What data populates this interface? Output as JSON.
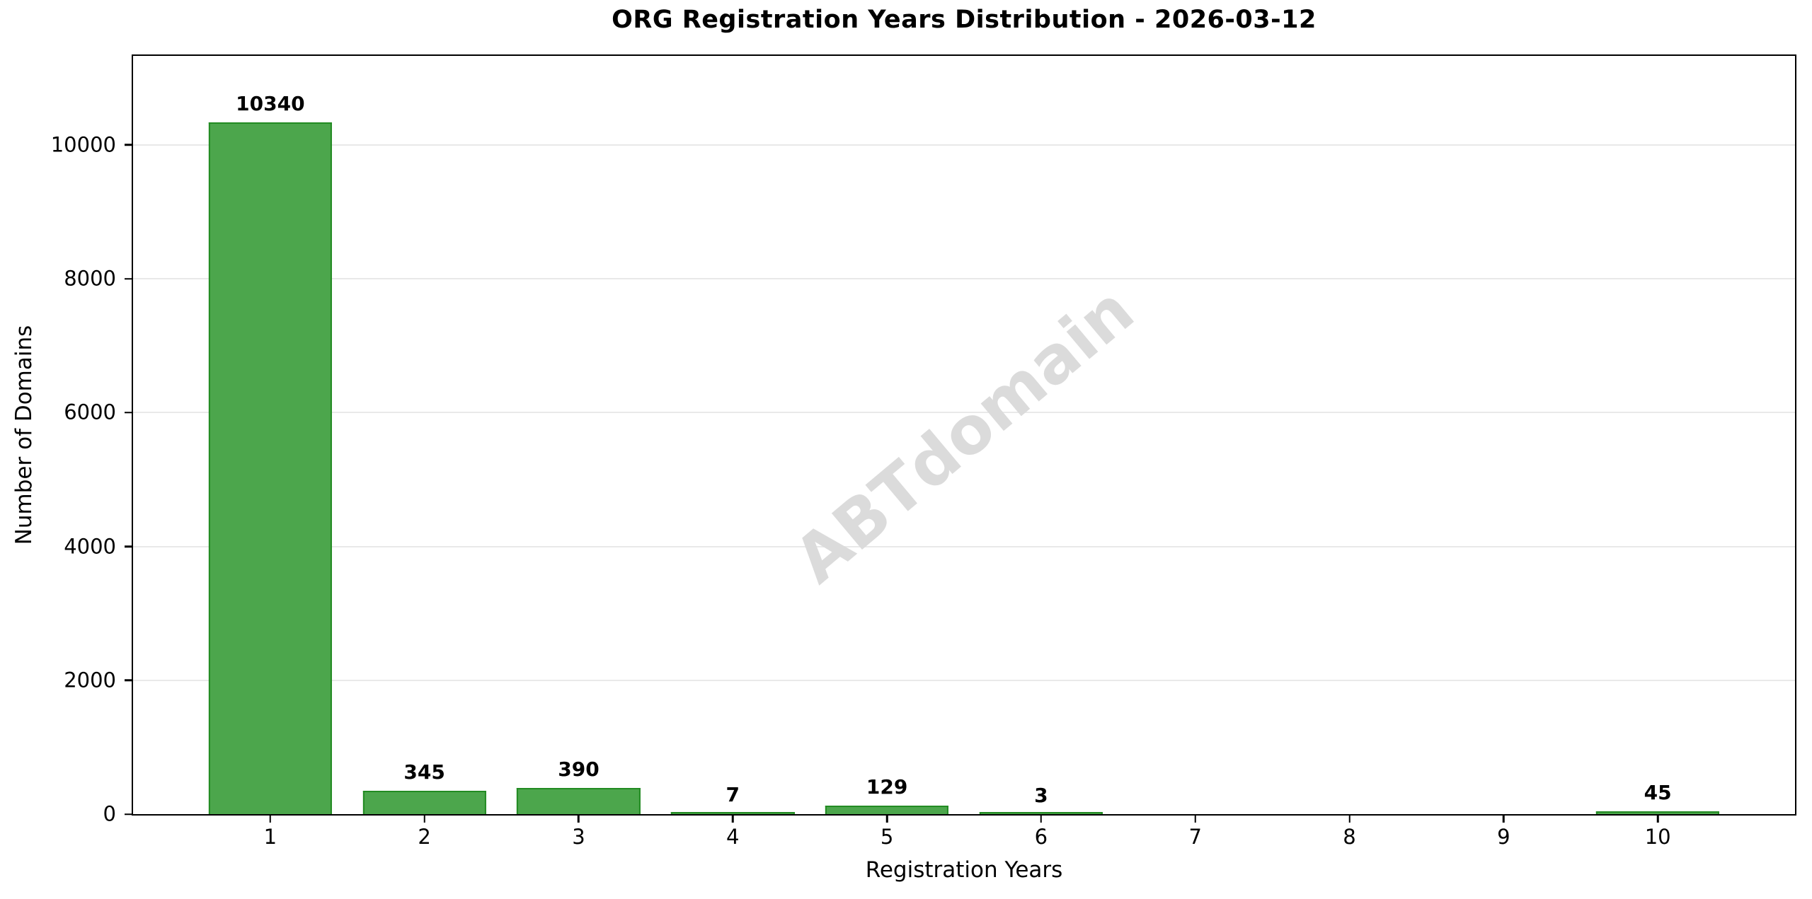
{
  "chart_data": {
    "type": "bar",
    "title": "ORG Registration Years Distribution - 2026-03-12",
    "xlabel": "Registration Years",
    "ylabel": "Number of Domains",
    "categories": [
      1,
      2,
      3,
      4,
      5,
      6,
      7,
      8,
      9,
      10
    ],
    "values": [
      10340,
      345,
      390,
      7,
      129,
      3,
      0,
      0,
      0,
      45
    ],
    "bar_labels": [
      "10340",
      "345",
      "390",
      "7",
      "129",
      "3",
      "",
      "",
      "",
      "45"
    ],
    "yticks": [
      0,
      2000,
      4000,
      6000,
      8000,
      10000
    ],
    "ylim": [
      0,
      11330
    ],
    "xlim": [
      0.11,
      10.89
    ],
    "bar_width": 0.8,
    "grid": "horizontal",
    "legend": "none",
    "watermark": "ABTdomain",
    "colors": {
      "bar_fill": "#4CA64C",
      "bar_edge": "#228B22",
      "grid": "#E9E9E9",
      "spine": "#000000",
      "text": "#000000",
      "watermark": "#DBDBDB"
    }
  }
}
